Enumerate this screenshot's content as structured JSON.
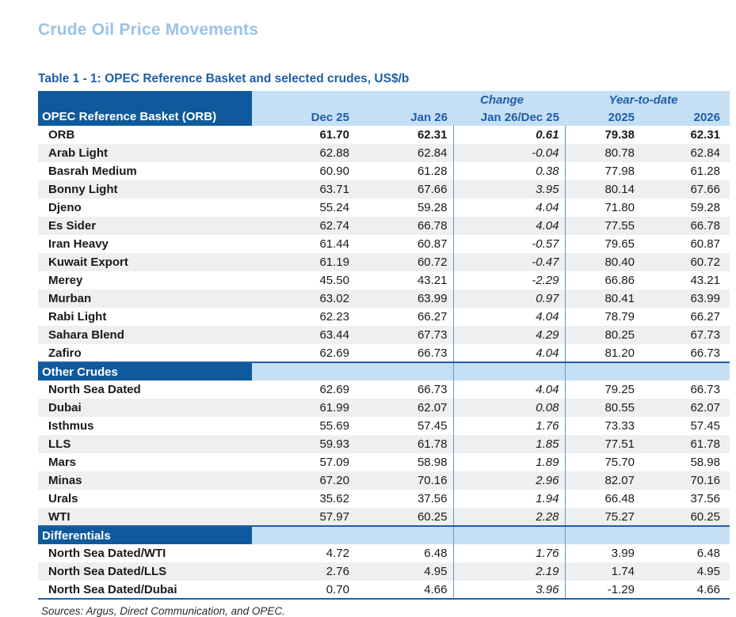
{
  "page": {
    "title": "Crude Oil Price Movements"
  },
  "colors": {
    "title": "#9cc2e5",
    "caption": "#1f5ea8",
    "dark": "#0f5a9c",
    "light": "#c5dff4",
    "stripe": "#efefef",
    "divider": "#5f9bc1",
    "rule": "#1f5ea8",
    "text": "#1a1a1a"
  },
  "table": {
    "caption": "Table 1 - 1: OPEC Reference Basket and selected crudes, US$/b",
    "corner_header": "OPEC Reference Basket (ORB)",
    "group_headers": {
      "change": "Change",
      "ytd": "Year-to-date"
    },
    "columns": [
      "Dec 25",
      "Jan 26",
      "Jan 26/Dec 25",
      "2025",
      "2026"
    ],
    "sections": [
      {
        "key": "orb",
        "label": null,
        "rows": [
          {
            "name": "ORB",
            "bold": true,
            "values": [
              "61.70",
              "62.31",
              "0.61",
              "79.38",
              "62.31"
            ]
          },
          {
            "name": "Arab Light",
            "bold": false,
            "values": [
              "62.88",
              "62.84",
              "-0.04",
              "80.78",
              "62.84"
            ]
          },
          {
            "name": "Basrah Medium",
            "bold": false,
            "values": [
              "60.90",
              "61.28",
              "0.38",
              "77.98",
              "61.28"
            ]
          },
          {
            "name": "Bonny Light",
            "bold": false,
            "values": [
              "63.71",
              "67.66",
              "3.95",
              "80.14",
              "67.66"
            ]
          },
          {
            "name": "Djeno",
            "bold": false,
            "values": [
              "55.24",
              "59.28",
              "4.04",
              "71.80",
              "59.28"
            ]
          },
          {
            "name": "Es Sider",
            "bold": false,
            "values": [
              "62.74",
              "66.78",
              "4.04",
              "77.55",
              "66.78"
            ]
          },
          {
            "name": "Iran Heavy",
            "bold": false,
            "values": [
              "61.44",
              "60.87",
              "-0.57",
              "79.65",
              "60.87"
            ]
          },
          {
            "name": "Kuwait Export",
            "bold": false,
            "values": [
              "61.19",
              "60.72",
              "-0.47",
              "80.40",
              "60.72"
            ]
          },
          {
            "name": "Merey",
            "bold": false,
            "values": [
              "45.50",
              "43.21",
              "-2.29",
              "66.86",
              "43.21"
            ]
          },
          {
            "name": "Murban",
            "bold": false,
            "values": [
              "63.02",
              "63.99",
              "0.97",
              "80.41",
              "63.99"
            ]
          },
          {
            "name": "Rabi Light",
            "bold": false,
            "values": [
              "62.23",
              "66.27",
              "4.04",
              "78.79",
              "66.27"
            ]
          },
          {
            "name": "Sahara Blend",
            "bold": false,
            "values": [
              "63.44",
              "67.73",
              "4.29",
              "80.25",
              "67.73"
            ]
          },
          {
            "name": "Zafiro",
            "bold": false,
            "values": [
              "62.69",
              "66.73",
              "4.04",
              "81.20",
              "66.73"
            ]
          }
        ]
      },
      {
        "key": "other",
        "label": "Other Crudes",
        "rows": [
          {
            "name": "North Sea Dated",
            "bold": false,
            "values": [
              "62.69",
              "66.73",
              "4.04",
              "79.25",
              "66.73"
            ]
          },
          {
            "name": "Dubai",
            "bold": false,
            "values": [
              "61.99",
              "62.07",
              "0.08",
              "80.55",
              "62.07"
            ]
          },
          {
            "name": "Isthmus",
            "bold": false,
            "values": [
              "55.69",
              "57.45",
              "1.76",
              "73.33",
              "57.45"
            ]
          },
          {
            "name": "LLS",
            "bold": false,
            "values": [
              "59.93",
              "61.78",
              "1.85",
              "77.51",
              "61.78"
            ]
          },
          {
            "name": "Mars",
            "bold": false,
            "values": [
              "57.09",
              "58.98",
              "1.89",
              "75.70",
              "58.98"
            ]
          },
          {
            "name": "Minas",
            "bold": false,
            "values": [
              "67.20",
              "70.16",
              "2.96",
              "82.07",
              "70.16"
            ]
          },
          {
            "name": "Urals",
            "bold": false,
            "values": [
              "35.62",
              "37.56",
              "1.94",
              "66.48",
              "37.56"
            ]
          },
          {
            "name": "WTI",
            "bold": false,
            "values": [
              "57.97",
              "60.25",
              "2.28",
              "75.27",
              "60.25"
            ]
          }
        ]
      },
      {
        "key": "diff",
        "label": "Differentials",
        "rows": [
          {
            "name": "North Sea Dated/WTI",
            "bold": false,
            "values": [
              "4.72",
              "6.48",
              "1.76",
              "3.99",
              "6.48"
            ]
          },
          {
            "name": "North Sea Dated/LLS",
            "bold": false,
            "values": [
              "2.76",
              "4.95",
              "2.19",
              "1.74",
              "4.95"
            ]
          },
          {
            "name": "North Sea Dated/Dubai",
            "bold": false,
            "values": [
              "0.70",
              "4.66",
              "3.96",
              "-1.29",
              "4.66"
            ]
          }
        ]
      }
    ]
  },
  "footer": {
    "sources": "Sources:  Argus, Direct Communication, and OPEC."
  }
}
